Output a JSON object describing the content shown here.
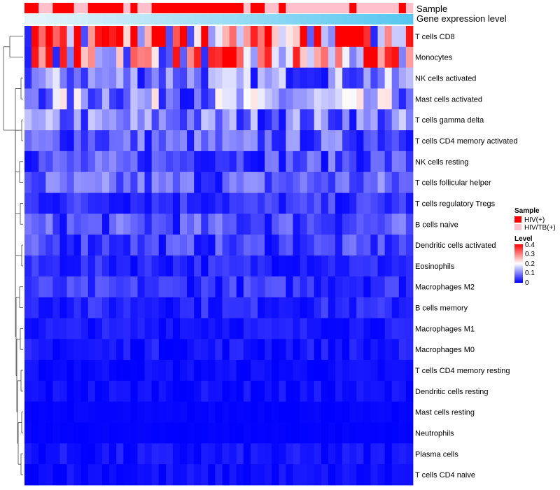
{
  "chart_data": {
    "type": "heatmap",
    "title": "",
    "annotations": [
      {
        "name": "Sample",
        "label": "Sample"
      },
      {
        "name": "Gene expression level",
        "label": "Gene expression level"
      }
    ],
    "sample_groups": [
      "HIV(+)",
      "HIV(+)",
      "HIV/TB(+)",
      "HIV/TB(+)",
      "HIV(+)",
      "HIV(+)",
      "HIV(+)",
      "HIV/TB(+)",
      "HIV/TB(+)",
      "HIV(+)",
      "HIV(+)",
      "HIV(+)",
      "HIV(+)",
      "HIV(+)",
      "HIV/TB(+)",
      "HIV(+)",
      "HIV/TB(+)",
      "HIV/TB(+)",
      "HIV(+)",
      "HIV(+)",
      "HIV(+)",
      "HIV(+)",
      "HIV(+)",
      "HIV(+)",
      "HIV(+)",
      "HIV(+)",
      "HIV(+)",
      "HIV(+)",
      "HIV(+)",
      "HIV(+)",
      "HIV(+)",
      "HIV/TB(+)",
      "HIV(+)",
      "HIV(+)",
      "HIV/TB(+)",
      "HIV/TB(+)",
      "HIV(+)",
      "HIV/TB(+)",
      "HIV/TB(+)",
      "HIV/TB(+)",
      "HIV/TB(+)",
      "HIV/TB(+)",
      "HIV/TB(+)",
      "HIV/TB(+)",
      "HIV/TB(+)",
      "HIV/TB(+)",
      "HIV(+)",
      "HIV/TB(+)",
      "HIV/TB(+)",
      "HIV/TB(+)",
      "HIV/TB(+)",
      "HIV/TB(+)",
      "HIV/TB(+)",
      "HIV(+)",
      "HIV/TB(+)"
    ],
    "rows": [
      "T cells CD8",
      "Monocytes",
      "NK cells activated",
      "Mast cells activated",
      "T cells gamma delta",
      "T cells CD4 memory activated",
      "NK cells resting",
      "T cells follicular helper",
      "T cells regulatory  Tregs",
      "B cells naive",
      "Dendritic cells activated",
      "Eosinophils",
      "Macrophages M2",
      "B cells memory",
      "Macrophages M1",
      "Macrophages M0",
      "T cells CD4 memory resting",
      "Dendritic cells resting",
      "Mast cells resting",
      "Neutrophils",
      "Plasma cells",
      "T cells CD4 naive"
    ],
    "row_mean_levels": [
      0.3,
      0.22,
      0.1,
      0.12,
      0.09,
      0.07,
      0.06,
      0.07,
      0.04,
      0.06,
      0.05,
      0.03,
      0.04,
      0.03,
      0.02,
      0.015,
      0.008,
      0.01,
      0.003,
      0.002,
      0.012,
      0.01
    ],
    "n_samples": 55,
    "color_scale": {
      "min": 0,
      "max": 0.4,
      "colors": [
        "#0000ff",
        "#ffffff",
        "#ff0000"
      ]
    },
    "annotation_colors": {
      "HIV(+)": "#ff0000",
      "HIV/TB(+)": "#ffc0cb",
      "gene_level_low": "#e6f5fb",
      "gene_level_high": "#56c6f0"
    },
    "legend": {
      "sample_title": "Sample",
      "sample_entries": [
        "HIV(+)",
        "HIV/TB(+)"
      ],
      "level_title": "Level",
      "level_ticks": [
        "0.4",
        "0.3",
        "0.2",
        "0.1",
        "0"
      ],
      "position": "right"
    },
    "row_dendrogram": true
  }
}
